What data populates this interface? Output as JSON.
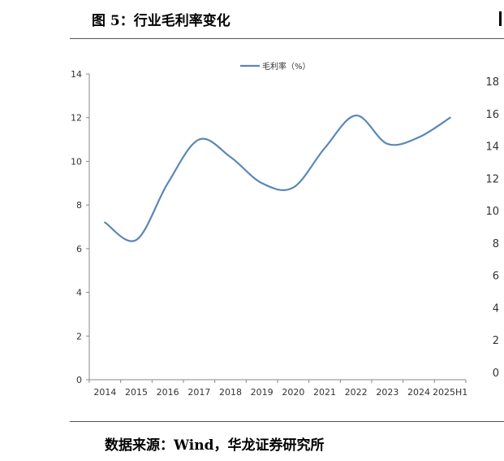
{
  "figure": {
    "title": "图 5：行业毛利率变化",
    "source": "数据来源：Wind，华龙证券研究所"
  },
  "chart_data": {
    "type": "line",
    "categories": [
      "2014",
      "2015",
      "2016",
      "2017",
      "2018",
      "2019",
      "2020",
      "2021",
      "2022",
      "2023",
      "2024",
      "2025H1"
    ],
    "series": [
      {
        "name": "毛利率（%）",
        "values": [
          7.2,
          6.4,
          9.0,
          11.0,
          10.2,
          9.0,
          8.8,
          10.6,
          12.1,
          10.8,
          11.1,
          12.0
        ],
        "color": "#5b87b7"
      }
    ],
    "ylim": [
      0,
      14
    ],
    "yticks": [
      0,
      2,
      4,
      6,
      8,
      10,
      12,
      14
    ],
    "y2ticks": [
      0,
      2,
      4,
      6,
      8,
      10,
      12,
      14,
      16,
      18
    ],
    "legend_position": "top-center",
    "grid": false
  }
}
